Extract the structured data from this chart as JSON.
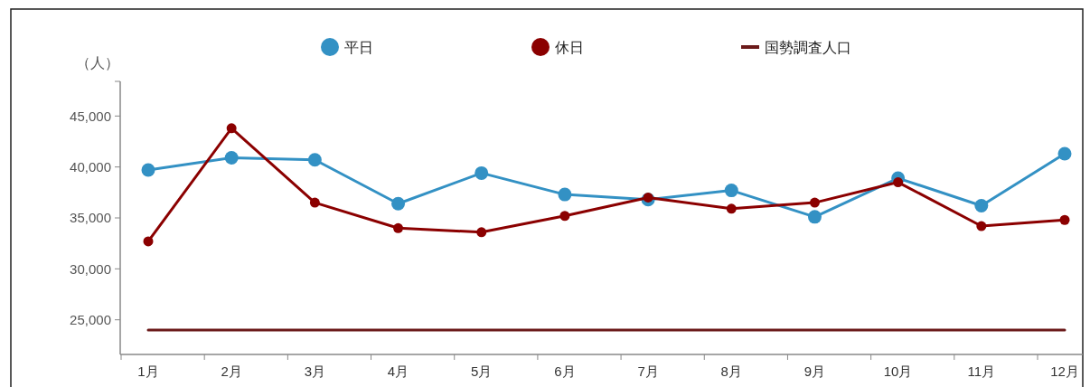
{
  "chart_data": {
    "type": "line",
    "ylabel": "（人）",
    "categories": [
      "1月",
      "2月",
      "3月",
      "4月",
      "5月",
      "6月",
      "7月",
      "8月",
      "9月",
      "10月",
      "11月",
      "12月"
    ],
    "series": [
      {
        "name": "平日",
        "color": "#3391c4",
        "values": [
          39700,
          40900,
          40700,
          36400,
          39400,
          37300,
          36800,
          37700,
          35100,
          38900,
          36200,
          41300
        ]
      },
      {
        "name": "休日",
        "color": "#8b0000",
        "values": [
          32700,
          43800,
          36500,
          34000,
          33600,
          35200,
          37000,
          35900,
          36500,
          38500,
          34200,
          34800
        ]
      },
      {
        "name": "国勢調査人口",
        "color": "#6b1a1a",
        "marker": "none",
        "values": [
          24000,
          24000,
          24000,
          24000,
          24000,
          24000,
          24000,
          24000,
          24000,
          24000,
          24000,
          24000
        ]
      }
    ],
    "ylim": [
      21600,
      48400
    ],
    "yticks": [
      {
        "value": 25000,
        "label": "25,000"
      },
      {
        "value": 30000,
        "label": "30,000"
      },
      {
        "value": 35000,
        "label": "35,000"
      },
      {
        "value": 40000,
        "label": "40,000"
      },
      {
        "value": 45000,
        "label": "45,000"
      }
    ],
    "marker": "circle",
    "legend": "top",
    "grid": false
  }
}
